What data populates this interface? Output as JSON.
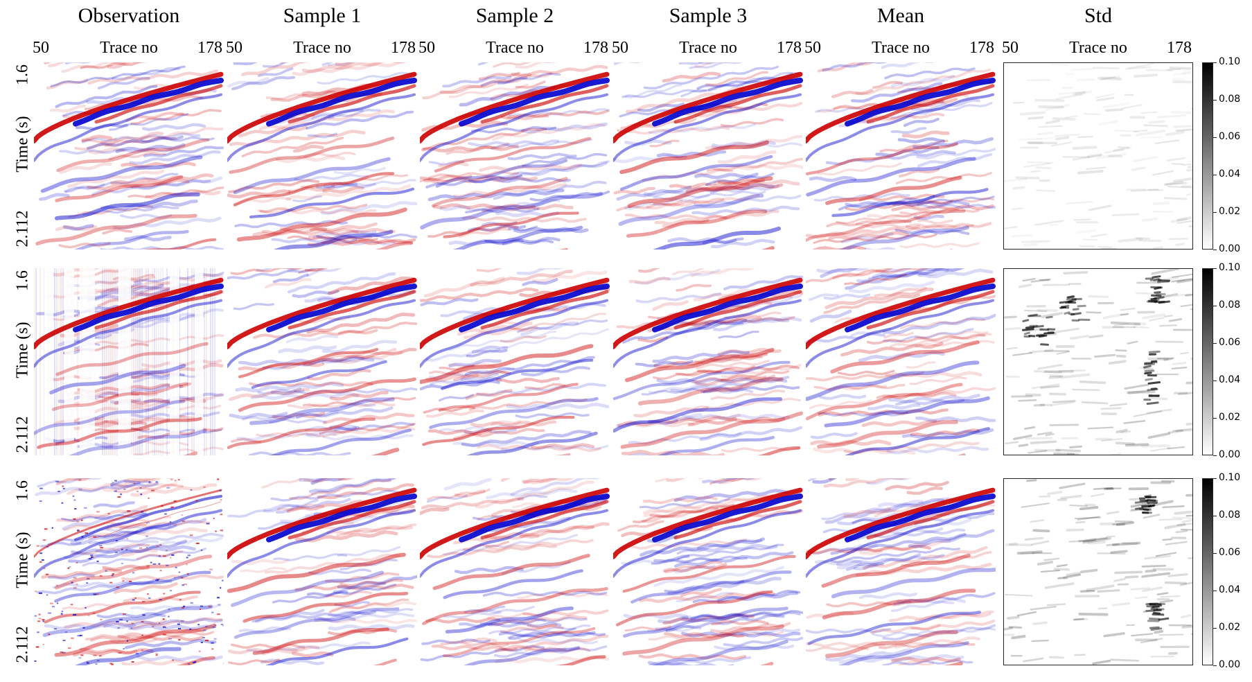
{
  "chart_data": {
    "type": "heatmap",
    "columns": [
      "Observation",
      "Sample 1",
      "Sample 2",
      "Sample 3",
      "Mean",
      "Std"
    ],
    "rows": 3,
    "x_axis": {
      "label": "Trace no",
      "ticks": [
        "50",
        "178"
      ],
      "range": [
        50,
        178
      ]
    },
    "y_axis": {
      "label": "Time (s)",
      "ticks": [
        "1.6",
        "2.112"
      ],
      "range": [
        1.6,
        2.112
      ]
    },
    "amplitude_colormap": {
      "name": "seismic",
      "negative_color": "#0000cc",
      "zero_color": "#ffffff",
      "positive_color": "#cc0000"
    },
    "std_colorbar": {
      "colormap": "Greys",
      "range": [
        0.0,
        0.1
      ],
      "ticks": [
        "0.00",
        "0.02",
        "0.04",
        "0.06",
        "0.08",
        "0.10"
      ]
    },
    "row_descriptions": [
      "noisy observation",
      "observation with missing traces",
      "sparse observation"
    ]
  }
}
